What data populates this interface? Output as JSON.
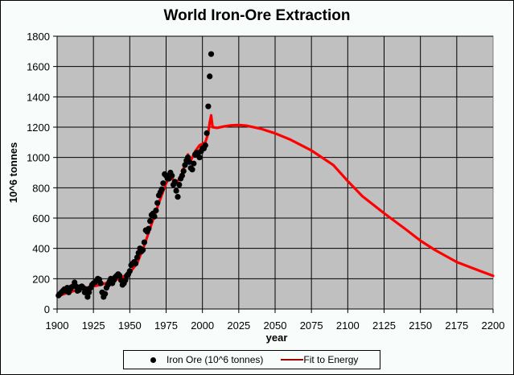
{
  "chart_data": {
    "type": "scatter",
    "title": "World Iron-Ore Extraction",
    "xlabel": "year",
    "ylabel": "10^6 tonnes",
    "xlim": [
      1900,
      2200
    ],
    "ylim": [
      0,
      1800
    ],
    "xticks": [
      1900,
      1925,
      1950,
      1975,
      2000,
      2025,
      2050,
      2075,
      2100,
      2125,
      2150,
      2175,
      2200
    ],
    "yticks": [
      0,
      200,
      400,
      600,
      800,
      1000,
      1200,
      1400,
      1600,
      1800
    ],
    "grid": true,
    "legend_position": "bottom",
    "colors": {
      "plot_bg": "#c0c0c0",
      "scatter": "#000000",
      "line": "#ff0000",
      "legend_line": "#a00000"
    },
    "series": [
      {
        "name": "Iron Ore (10^6 tonnes)",
        "kind": "scatter",
        "x": [
          1901,
          1902,
          1903,
          1904,
          1905,
          1906,
          1907,
          1908,
          1909,
          1910,
          1911,
          1912,
          1913,
          1914,
          1915,
          1916,
          1917,
          1918,
          1919,
          1920,
          1921,
          1922,
          1923,
          1924,
          1925,
          1926,
          1927,
          1928,
          1929,
          1930,
          1931,
          1932,
          1933,
          1934,
          1935,
          1936,
          1937,
          1938,
          1939,
          1940,
          1941,
          1942,
          1943,
          1944,
          1945,
          1946,
          1947,
          1948,
          1949,
          1950,
          1951,
          1952,
          1953,
          1954,
          1955,
          1956,
          1957,
          1958,
          1959,
          1960,
          1961,
          1962,
          1963,
          1964,
          1965,
          1966,
          1967,
          1968,
          1969,
          1970,
          1971,
          1972,
          1973,
          1974,
          1975,
          1976,
          1977,
          1978,
          1979,
          1980,
          1981,
          1982,
          1983,
          1984,
          1985,
          1986,
          1987,
          1988,
          1989,
          1990,
          1991,
          1992,
          1993,
          1994,
          1995,
          1996,
          1997,
          1998,
          1999,
          2000,
          2001,
          2002,
          2003,
          2004,
          2005,
          2006
        ],
        "y": [
          90,
          100,
          110,
          120,
          130,
          120,
          140,
          110,
          130,
          145,
          150,
          175,
          150,
          120,
          125,
          145,
          150,
          140,
          110,
          130,
          80,
          110,
          140,
          160,
          170,
          175,
          185,
          200,
          195,
          170,
          110,
          80,
          100,
          140,
          160,
          180,
          200,
          170,
          190,
          210,
          220,
          230,
          220,
          190,
          160,
          170,
          190,
          220,
          230,
          250,
          290,
          300,
          310,
          300,
          340,
          370,
          400,
          380,
          390,
          440,
          520,
          510,
          530,
          580,
          620,
          630,
          610,
          650,
          700,
          750,
          770,
          790,
          830,
          890,
          880,
          860,
          860,
          900,
          880,
          820,
          840,
          780,
          740,
          820,
          860,
          880,
          910,
          950,
          980,
          1000,
          970,
          930,
          920,
          960,
          1020,
          1030,
          1030,
          1000,
          1040,
          1060,
          1060,
          1080,
          1160,
          1337,
          1535,
          1682
        ]
      },
      {
        "name": "Fit to Energy",
        "kind": "line",
        "x": [
          1900,
          1905,
          1910,
          1915,
          1920,
          1925,
          1930,
          1935,
          1940,
          1945,
          1950,
          1955,
          1960,
          1965,
          1970,
          1975,
          1978,
          1980,
          1982,
          1985,
          1988,
          1990,
          1992,
          1995,
          1998,
          2000,
          2002,
          2004,
          2005,
          2006,
          2007,
          2010,
          2015,
          2020,
          2025,
          2030,
          2040,
          2050,
          2060,
          2075,
          2090,
          2100,
          2110,
          2125,
          2140,
          2150,
          2160,
          2175,
          2190,
          2200
        ],
        "y": [
          85,
          100,
          115,
          130,
          140,
          150,
          160,
          175,
          190,
          210,
          240,
          300,
          420,
          560,
          700,
          830,
          880,
          850,
          840,
          860,
          960,
          1020,
          980,
          1040,
          1080,
          1090,
          1100,
          1160,
          1230,
          1278,
          1200,
          1195,
          1205,
          1212,
          1214,
          1210,
          1190,
          1159,
          1120,
          1046,
          950,
          844,
          745,
          632,
          525,
          451,
          390,
          310,
          255,
          219
        ]
      }
    ]
  },
  "legend": {
    "items": [
      {
        "label": "Iron Ore (10^6 tonnes)",
        "marker": "dot"
      },
      {
        "label": "Fit to Energy",
        "marker": "line"
      }
    ]
  }
}
